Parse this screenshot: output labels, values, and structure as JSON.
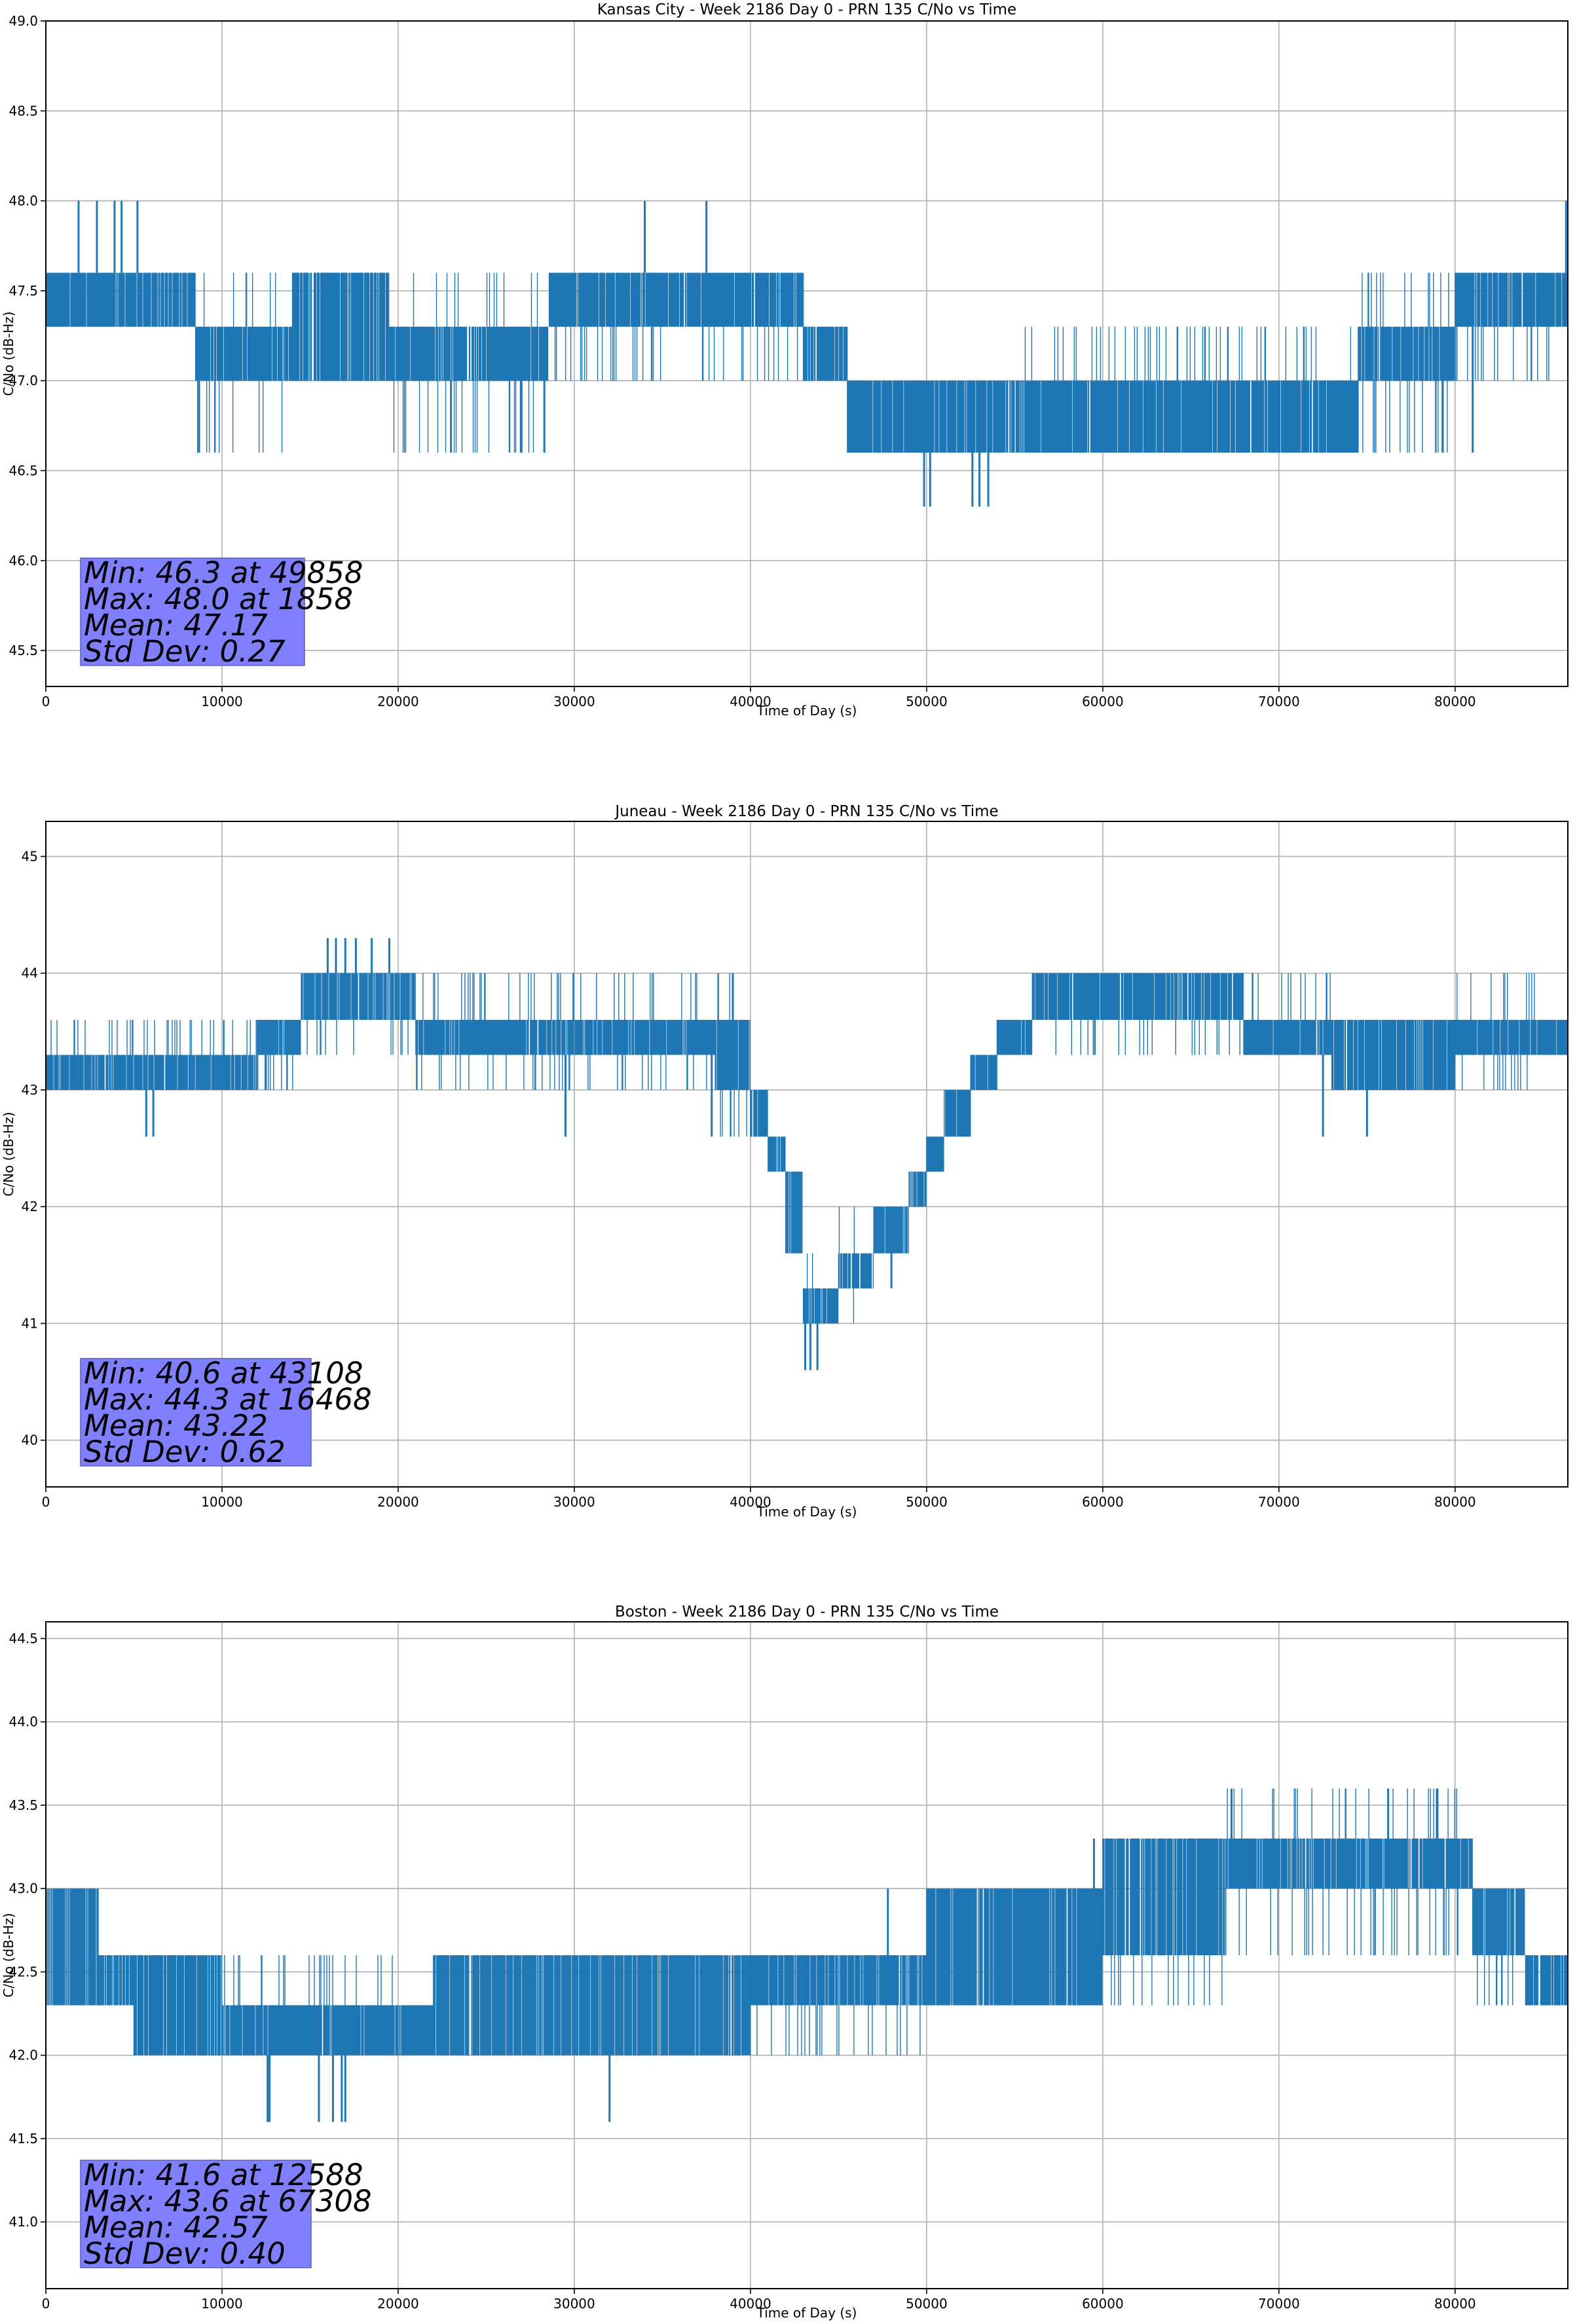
{
  "chart_data": [
    {
      "type": "line",
      "title": "Kansas City - Week 2186 Day 0 - PRN 135 C/No vs Time",
      "xlabel": "Time of Day (s)",
      "ylabel": "C/No (dB-Hz)",
      "xlim": [
        0,
        86400
      ],
      "ylim": [
        45.3,
        49.0
      ],
      "grid": true,
      "color": "#1f77b4",
      "xticks": [
        0,
        10000,
        20000,
        30000,
        40000,
        50000,
        60000,
        70000,
        80000
      ],
      "xtick_labels": [
        "0",
        "10000",
        "20000",
        "30000",
        "40000",
        "50000",
        "60000",
        "70000",
        "80000"
      ],
      "yticks": [
        45.5,
        46.0,
        46.5,
        47.0,
        47.5,
        48.0,
        48.5,
        49.0
      ],
      "ytick_labels": [
        "45.5",
        "46.0",
        "46.5",
        "47.0",
        "47.5",
        "48.0",
        "48.5",
        "49.0"
      ],
      "segments_note": "[x_start, x_end, band_low, band_high, excursion_low, excursion_high]",
      "segments": [
        [
          0,
          8500,
          47.3,
          47.6,
          47.3,
          47.6
        ],
        [
          8500,
          14000,
          47.0,
          47.3,
          46.6,
          47.6
        ],
        [
          14000,
          19500,
          47.0,
          47.6,
          47.0,
          47.6
        ],
        [
          19500,
          28500,
          47.0,
          47.3,
          46.6,
          47.6
        ],
        [
          28500,
          43000,
          47.3,
          47.6,
          47.0,
          47.6
        ],
        [
          43000,
          45500,
          47.0,
          47.3,
          47.0,
          47.3
        ],
        [
          45500,
          55000,
          46.6,
          47.0,
          46.6,
          47.0
        ],
        [
          55000,
          74500,
          46.6,
          47.0,
          46.6,
          47.3
        ],
        [
          74500,
          80000,
          47.0,
          47.3,
          46.6,
          47.6
        ],
        [
          80000,
          86400,
          47.3,
          47.6,
          47.0,
          47.6
        ]
      ],
      "spikes": [
        [
          1858,
          48.0
        ],
        [
          2900,
          48.0
        ],
        [
          3900,
          48.0
        ],
        [
          4300,
          48.0
        ],
        [
          5200,
          48.0
        ],
        [
          8700,
          46.6
        ],
        [
          23000,
          46.6
        ],
        [
          27000,
          46.6
        ],
        [
          28300,
          46.6
        ],
        [
          34000,
          48.0
        ],
        [
          37500,
          48.0
        ],
        [
          49858,
          46.3
        ],
        [
          50200,
          46.3
        ],
        [
          52600,
          46.3
        ],
        [
          53000,
          46.3
        ],
        [
          53500,
          46.3
        ],
        [
          79300,
          46.6
        ],
        [
          81000,
          46.6
        ],
        [
          86300,
          48.0
        ]
      ],
      "stats": {
        "min": "Min: 46.3 at 49858",
        "max": "Max: 48.0 at 1858",
        "mean": "Mean: 47.17",
        "std": "Std Dev: 0.27"
      },
      "stats_box_color": "#8080ff"
    },
    {
      "type": "line",
      "title": "Juneau - Week 2186 Day 0 - PRN 135 C/No vs Time",
      "xlabel": "Time of Day (s)",
      "ylabel": "C/No (dB-Hz)",
      "xlim": [
        0,
        86400
      ],
      "ylim": [
        39.6,
        45.3
      ],
      "grid": true,
      "color": "#1f77b4",
      "xticks": [
        0,
        10000,
        20000,
        30000,
        40000,
        50000,
        60000,
        70000,
        80000
      ],
      "xtick_labels": [
        "0",
        "10000",
        "20000",
        "30000",
        "40000",
        "50000",
        "60000",
        "70000",
        "80000"
      ],
      "yticks": [
        40,
        41,
        42,
        43,
        44,
        45
      ],
      "ytick_labels": [
        "40",
        "41",
        "42",
        "43",
        "44",
        "45"
      ],
      "segments": [
        [
          0,
          8000,
          43.0,
          43.3,
          43.0,
          43.6
        ],
        [
          8000,
          12000,
          43.0,
          43.3,
          43.0,
          43.6
        ],
        [
          12000,
          14500,
          43.3,
          43.6,
          43.0,
          43.6
        ],
        [
          14500,
          21000,
          43.6,
          44.0,
          43.3,
          44.0
        ],
        [
          21000,
          38000,
          43.3,
          43.6,
          43.0,
          44.0
        ],
        [
          38000,
          40000,
          43.0,
          43.6,
          42.6,
          44.0
        ],
        [
          40000,
          41000,
          42.6,
          43.0,
          42.6,
          43.0
        ],
        [
          41000,
          42000,
          42.3,
          42.6,
          42.3,
          42.6
        ],
        [
          42000,
          43000,
          41.6,
          42.3,
          41.6,
          42.3
        ],
        [
          43000,
          45000,
          41.0,
          41.3,
          41.0,
          41.6
        ],
        [
          45000,
          47000,
          41.3,
          41.6,
          41.0,
          42.0
        ],
        [
          47000,
          49000,
          41.6,
          42.0,
          41.6,
          42.0
        ],
        [
          49000,
          50000,
          42.0,
          42.3,
          42.0,
          42.3
        ],
        [
          50000,
          51000,
          42.3,
          42.6,
          42.3,
          42.6
        ],
        [
          51000,
          52500,
          42.6,
          43.0,
          42.6,
          43.0
        ],
        [
          52500,
          54000,
          43.0,
          43.3,
          43.0,
          43.3
        ],
        [
          54000,
          56000,
          43.3,
          43.6,
          43.3,
          43.6
        ],
        [
          56000,
          68000,
          43.6,
          44.0,
          43.3,
          44.0
        ],
        [
          68000,
          73000,
          43.3,
          43.6,
          43.3,
          44.0
        ],
        [
          73000,
          80000,
          43.0,
          43.6,
          43.0,
          43.6
        ],
        [
          80000,
          84500,
          43.3,
          43.6,
          43.0,
          44.0
        ],
        [
          84500,
          86400,
          43.3,
          43.6,
          43.3,
          43.6
        ]
      ],
      "spikes": [
        [
          5700,
          42.6
        ],
        [
          6100,
          42.6
        ],
        [
          16000,
          44.3
        ],
        [
          16468,
          44.3
        ],
        [
          17000,
          44.3
        ],
        [
          17600,
          44.3
        ],
        [
          18500,
          44.3
        ],
        [
          19500,
          44.3
        ],
        [
          29500,
          42.6
        ],
        [
          37800,
          42.6
        ],
        [
          39000,
          44.0
        ],
        [
          43108,
          40.6
        ],
        [
          43400,
          40.6
        ],
        [
          43800,
          40.6
        ],
        [
          48000,
          41.3
        ],
        [
          72500,
          42.6
        ],
        [
          75000,
          42.6
        ]
      ],
      "stats": {
        "min": "Min: 40.6 at 43108",
        "max": "Max: 44.3 at 16468",
        "mean": "Mean: 43.22",
        "std": "Std Dev: 0.62"
      },
      "stats_box_color": "#8080ff"
    },
    {
      "type": "line",
      "title": "Boston - Week 2186 Day 0 - PRN 135 C/No vs Time",
      "xlabel": "Time of Day (s)",
      "ylabel": "C/No (dB-Hz)",
      "xlim": [
        0,
        86400
      ],
      "ylim": [
        40.6,
        44.6
      ],
      "grid": true,
      "color": "#1f77b4",
      "xticks": [
        0,
        10000,
        20000,
        30000,
        40000,
        50000,
        60000,
        70000,
        80000
      ],
      "xtick_labels": [
        "0",
        "10000",
        "20000",
        "30000",
        "40000",
        "50000",
        "60000",
        "70000",
        "80000"
      ],
      "yticks": [
        41.0,
        41.5,
        42.0,
        42.5,
        43.0,
        43.5,
        44.0,
        44.5
      ],
      "ytick_labels": [
        "41.0",
        "41.5",
        "42.0",
        "42.5",
        "43.0",
        "43.5",
        "44.0",
        "44.5"
      ],
      "segments": [
        [
          0,
          3000,
          42.3,
          43.0,
          42.3,
          43.0
        ],
        [
          3000,
          5000,
          42.3,
          42.6,
          42.3,
          42.6
        ],
        [
          5000,
          10000,
          42.0,
          42.6,
          42.0,
          42.6
        ],
        [
          10000,
          22000,
          42.0,
          42.3,
          42.0,
          42.6
        ],
        [
          22000,
          40000,
          42.0,
          42.6,
          42.0,
          42.6
        ],
        [
          40000,
          50000,
          42.3,
          42.6,
          42.0,
          42.6
        ],
        [
          50000,
          60000,
          42.3,
          43.0,
          42.3,
          43.0
        ],
        [
          60000,
          67000,
          42.6,
          43.3,
          42.3,
          43.3
        ],
        [
          67000,
          81000,
          43.0,
          43.3,
          42.6,
          43.6
        ],
        [
          81000,
          84000,
          42.6,
          43.0,
          42.3,
          43.0
        ],
        [
          84000,
          86400,
          42.3,
          42.6,
          42.3,
          42.6
        ]
      ],
      "spikes": [
        [
          12588,
          41.6
        ],
        [
          12700,
          41.6
        ],
        [
          15500,
          41.6
        ],
        [
          16300,
          41.6
        ],
        [
          16800,
          41.6
        ],
        [
          17000,
          41.6
        ],
        [
          32000,
          41.6
        ],
        [
          47800,
          43.0
        ],
        [
          59500,
          43.3
        ],
        [
          67308,
          43.6
        ],
        [
          76200,
          43.6
        ],
        [
          79000,
          43.6
        ]
      ],
      "stats": {
        "min": "Min: 41.6 at 12588",
        "max": "Max: 43.6 at 67308",
        "mean": "Mean: 42.57",
        "std": "Std Dev: 0.40"
      },
      "stats_box_color": "#8080ff"
    }
  ]
}
